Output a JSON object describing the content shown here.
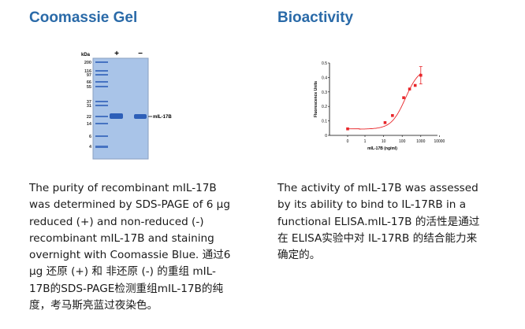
{
  "left": {
    "title": "Coomassie Gel",
    "gel": {
      "unit_label": "kDa",
      "lanes": [
        "+",
        "−"
      ],
      "ladder": [
        "200",
        "116",
        "97",
        "66",
        "55",
        "37",
        "31",
        "22",
        "14",
        "6",
        "4"
      ],
      "band_label": "mIL-17B",
      "gel_color": "#a9c4e8",
      "band_color": "#2d5fb8"
    },
    "paragraph_lines": [
      "The purity of recombinant mIL-17B",
      "was determined by SDS-PAGE of 6 µg",
      "reduced (+) and non-reduced (-)",
      "recombinant mIL-17B and staining",
      "overnight with Coomassie Blue. 通过6",
      "µg 还原 (+) 和 非还原 (-) 的重组 mIL-",
      "17B的SDS-PAGE检测重组mIL-17B的纯",
      "度，考马斯亮蓝过夜染色。"
    ]
  },
  "right": {
    "title": "Bioactivity",
    "paragraph_lines": [
      "The activity of mIL-17B was assessed",
      "by its ability to bind to IL-17RB in a",
      "functional ELISA.mIL-17B 的活性是通过",
      "在 ELISA实验中对 IL-17RB 的结合能力来",
      "确定的。"
    ]
  },
  "chart_data": {
    "type": "scatter",
    "xlabel": "mIL-17B (ng/ml)",
    "ylabel": "Fluorescence Units",
    "x_scale": "log (0 shown at far left)",
    "x_ticks": [
      "0",
      "1",
      "10",
      "100",
      "1000",
      "10000"
    ],
    "y_ticks": [
      "0",
      "0.1",
      "0.2",
      "0.3",
      "0.4",
      "0.5"
    ],
    "ylim": [
      0,
      0.5
    ],
    "grid": false,
    "color": "#e8262a",
    "points": [
      {
        "x": 0,
        "y": 0.045
      },
      {
        "x": 12,
        "y": 0.088
      },
      {
        "x": 30,
        "y": 0.137
      },
      {
        "x": 120,
        "y": 0.26
      },
      {
        "x": 250,
        "y": 0.32
      },
      {
        "x": 500,
        "y": 0.345
      },
      {
        "x": 1000,
        "y": 0.415,
        "error": 0.06
      }
    ],
    "fit_curve": true
  }
}
